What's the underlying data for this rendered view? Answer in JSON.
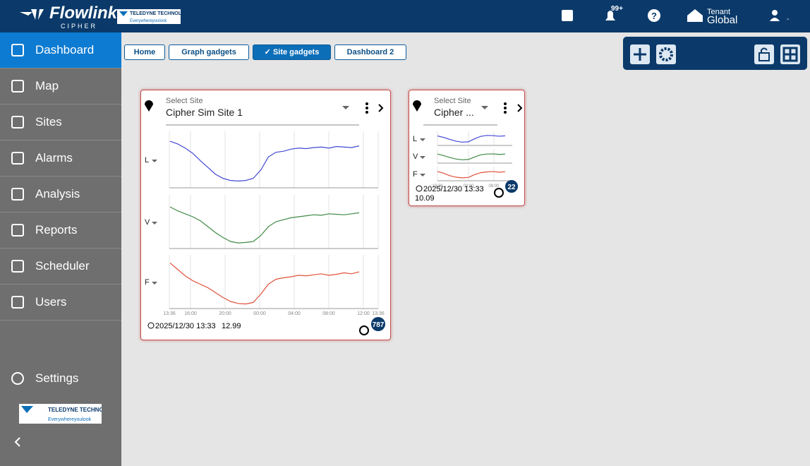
{
  "header": {
    "brand": "Flowlink",
    "sub": "CIPHER",
    "partner": "TELEDYNE TECHNOLOGIES",
    "tagline": "Everywhereyoulook",
    "notifications": "99+",
    "tenant_label": "Tenant",
    "tenant": "Global",
    "user": "-"
  },
  "sidebar": {
    "items": [
      "Dashboard",
      "Map",
      "Sites",
      "Alarms",
      "Analysis",
      "Reports",
      "Scheduler",
      "Users"
    ],
    "active": 0,
    "settings": "Settings",
    "partner": "TELEDYNE TECHNOLOGIES",
    "tagline": "Everywhereyoulook"
  },
  "tabs": {
    "items": [
      "Home",
      "Graph gadgets",
      "Site gadgets",
      "Dashboard 2"
    ],
    "active": 2,
    "check": "✓"
  },
  "gadgets": [
    {
      "select_label": "Select Site",
      "site": "Cipher Sim Site 1",
      "ylim": [
        0,
        100
      ],
      "series": [
        {
          "name": "L",
          "color": "#4349d4",
          "values": [
            85,
            80,
            72,
            62,
            48,
            35,
            22,
            14,
            10,
            9,
            10,
            14,
            30,
            55,
            64,
            66,
            70,
            72,
            71,
            73,
            74,
            72,
            75,
            74,
            73,
            76
          ]
        },
        {
          "name": "V",
          "color": "#3f8a45",
          "values": [
            80,
            72,
            66,
            60,
            52,
            40,
            28,
            18,
            10,
            7,
            8,
            10,
            22,
            40,
            50,
            54,
            58,
            60,
            62,
            64,
            63,
            66,
            65,
            64,
            66,
            68
          ]
        },
        {
          "name": "F",
          "color": "#e0513c",
          "values": [
            88,
            75,
            62,
            52,
            45,
            38,
            28,
            18,
            10,
            6,
            5,
            8,
            25,
            45,
            55,
            58,
            60,
            63,
            62,
            64,
            66,
            63,
            65,
            68,
            66,
            70
          ]
        }
      ],
      "xticks": [
        "13:36",
        "16:00",
        "20:00",
        "00:00",
        "04:00",
        "08:00",
        "12:00",
        "13:36"
      ],
      "timestamp": "2025/12/30 13:33",
      "reading": "12.99",
      "alarms": "787"
    },
    {
      "select_label": "Select Site",
      "site": "Cipher ...",
      "ylim": [
        0,
        100
      ],
      "series": [
        {
          "name": "L",
          "color": "#4349d4",
          "values": [
            75,
            60,
            40,
            22,
            12,
            15,
            45,
            70,
            80,
            78,
            72,
            76
          ]
        },
        {
          "name": "V",
          "color": "#3f8a45",
          "values": [
            70,
            55,
            35,
            20,
            12,
            15,
            40,
            62,
            70,
            72,
            66,
            70
          ]
        },
        {
          "name": "F",
          "color": "#e0513c",
          "values": [
            72,
            55,
            30,
            15,
            8,
            12,
            40,
            60,
            68,
            72,
            65,
            70
          ]
        }
      ],
      "xticks": [
        "13:36",
        "00:00",
        "08:00"
      ],
      "timestamp": "2025/12/30 13:33",
      "reading": "10.09",
      "alarms": "22"
    }
  ]
}
